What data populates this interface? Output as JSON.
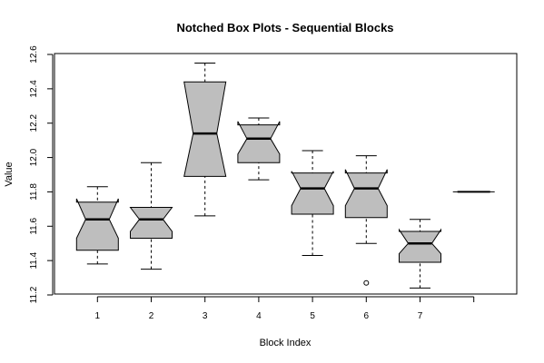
{
  "chart_data": {
    "type": "box",
    "title": "Notched Box Plots - Sequential Blocks",
    "xlabel": "Block Index",
    "ylabel": "Value",
    "ylim": [
      11.2,
      12.6
    ],
    "yticks": [
      11.2,
      11.4,
      11.6,
      11.8,
      12.0,
      12.2,
      12.4,
      12.6
    ],
    "ytick_labels": [
      "11.2",
      "11.4",
      "11.6",
      "11.8",
      "12.0",
      "12.2",
      "12.4",
      "12.6"
    ],
    "notched": true,
    "box_color": "#bebebe",
    "grid": false,
    "categories": [
      "1",
      "2",
      "3",
      "4",
      "5",
      "6",
      "7",
      ""
    ],
    "boxes": [
      {
        "whisker_low": 11.38,
        "q1": 11.46,
        "median": 11.64,
        "q3": 11.74,
        "whisker_high": 11.83,
        "notch_low": 11.53,
        "notch_high": 11.76,
        "outliers": []
      },
      {
        "whisker_low": 11.35,
        "q1": 11.53,
        "median": 11.64,
        "q3": 11.71,
        "whisker_high": 11.97,
        "notch_low": 11.57,
        "notch_high": 11.71,
        "outliers": []
      },
      {
        "whisker_low": 11.66,
        "q1": 11.89,
        "median": 12.14,
        "q3": 12.44,
        "whisker_high": 12.55,
        "notch_low": 11.89,
        "notch_high": 12.44,
        "outliers": []
      },
      {
        "whisker_low": 11.87,
        "q1": 11.97,
        "median": 12.11,
        "q3": 12.19,
        "whisker_high": 12.23,
        "notch_low": 12.02,
        "notch_high": 12.21,
        "outliers": []
      },
      {
        "whisker_low": 11.43,
        "q1": 11.67,
        "median": 11.82,
        "q3": 11.91,
        "whisker_high": 12.04,
        "notch_low": 11.72,
        "notch_high": 11.92,
        "outliers": []
      },
      {
        "whisker_low": 11.5,
        "q1": 11.65,
        "median": 11.82,
        "q3": 11.91,
        "whisker_high": 12.01,
        "notch_low": 11.72,
        "notch_high": 11.93,
        "outliers": [
          11.27
        ]
      },
      {
        "whisker_low": 11.24,
        "q1": 11.39,
        "median": 11.5,
        "q3": 11.57,
        "whisker_high": 11.64,
        "notch_low": 11.44,
        "notch_high": 11.58,
        "outliers": []
      },
      {
        "whisker_low": 11.8,
        "q1": 11.8,
        "median": 11.8,
        "q3": 11.8,
        "whisker_high": 11.8,
        "notch_low": 11.8,
        "notch_high": 11.8,
        "outliers": []
      }
    ]
  }
}
